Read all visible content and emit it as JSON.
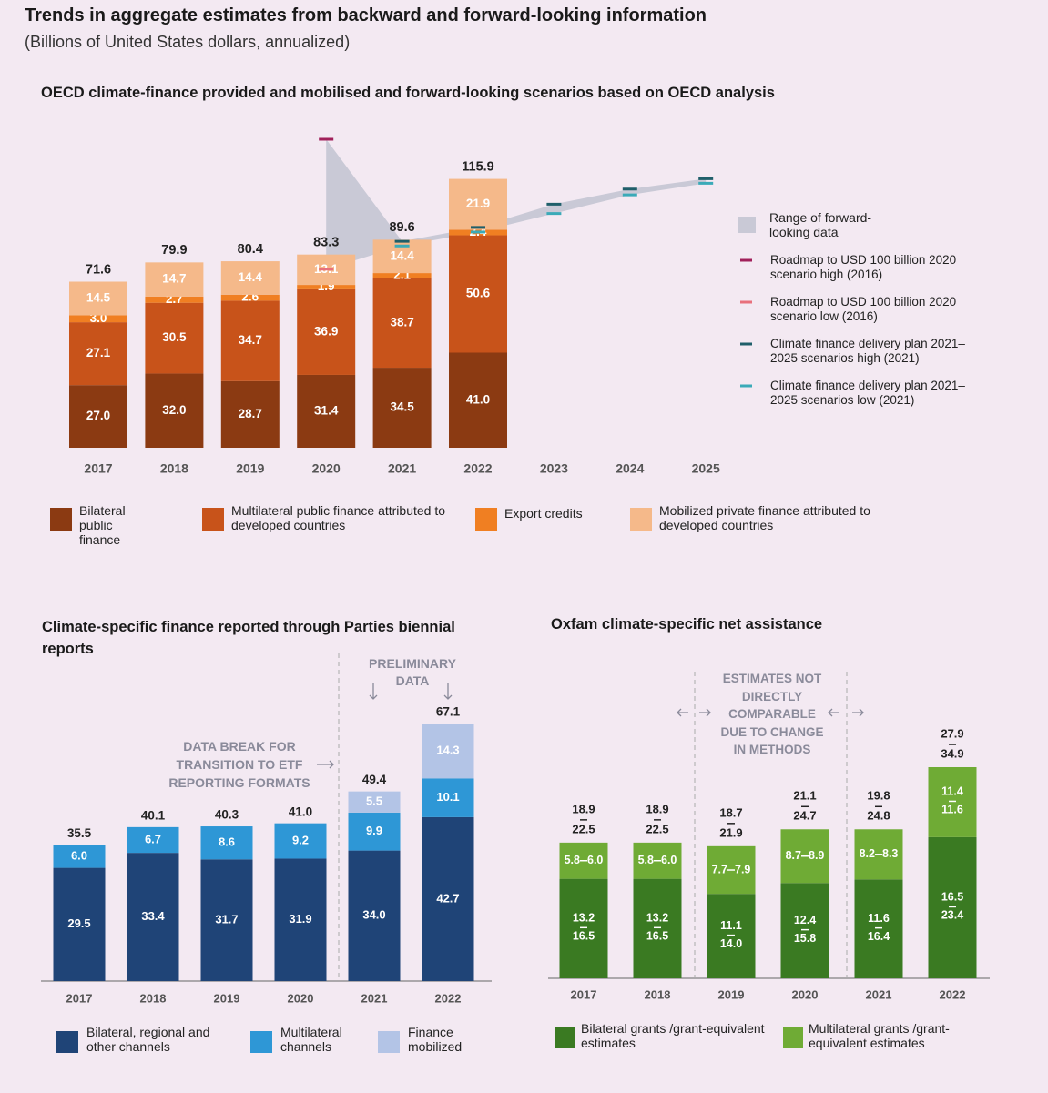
{
  "title": "Trends in aggregate estimates from backward and forward-looking information",
  "subtitle": "(Billions of United States dollars, annualized)",
  "chart_data": [
    {
      "type": "stacked_bar_scenarios",
      "title": "OECD climate-finance provided and mobilised and forward-looking scenarios based on OECD analysis",
      "categories": [
        "2017",
        "2018",
        "2019",
        "2020",
        "2021",
        "2022",
        "2023",
        "2024",
        "2025"
      ],
      "series": [
        {
          "name": "Bilateral public finance",
          "color": "#8b3a12",
          "values": [
            27.0,
            32.0,
            28.7,
            31.4,
            34.5,
            41.0,
            null,
            null,
            null
          ],
          "value_labels": [
            "27.0",
            "32.0",
            "28.7",
            "31.4",
            "34.5",
            "41.0",
            null,
            null,
            null
          ]
        },
        {
          "name": "Multilateral public finance attributed to developed countries",
          "color": "#c8531a",
          "values": [
            27.1,
            30.5,
            34.7,
            36.9,
            38.7,
            50.6,
            null,
            null,
            null
          ],
          "value_labels": [
            "27.1",
            "30.5",
            "34.7",
            "36.9",
            "38.7",
            "50.6",
            null,
            null,
            null
          ]
        },
        {
          "name": "Export credits",
          "color": "#f07f22",
          "values": [
            3.0,
            2.7,
            2.6,
            1.9,
            2.1,
            2.4,
            null,
            null,
            null
          ],
          "value_labels": [
            "3.0",
            "2.7",
            "2.6",
            "1.9",
            "2.1",
            "2.4",
            null,
            null,
            null
          ]
        },
        {
          "name": "Mobilized private finance attributed to developed countries",
          "color": "#f5b98a",
          "values": [
            14.5,
            14.7,
            14.4,
            13.1,
            14.4,
            21.9,
            null,
            null,
            null
          ],
          "value_labels": [
            "14.5",
            "14.7",
            "14.4",
            "13.1",
            "14.4",
            "21.9",
            null,
            null,
            null
          ]
        }
      ],
      "totals": [
        71.6,
        79.9,
        80.4,
        83.3,
        89.6,
        115.9,
        null,
        null,
        null
      ],
      "range": {
        "name": "Range of forward-looking data",
        "color": "#c9c9d6",
        "low": [
          null,
          null,
          null,
          77,
          87,
          93,
          101,
          109,
          114
        ],
        "high": [
          null,
          null,
          null,
          133,
          89,
          95,
          105,
          111.5,
          116
        ]
      },
      "scenarios": [
        {
          "name": "Roadmap to USD 100 billion 2020 scenario high (2016)",
          "color": "#a0205a",
          "values": [
            null,
            null,
            null,
            133,
            null,
            null,
            null,
            null,
            null
          ]
        },
        {
          "name": "Roadmap to USD 100 billion 2020 scenario low (2016)",
          "color": "#e8707c",
          "values": [
            null,
            null,
            null,
            77,
            null,
            null,
            null,
            null,
            null
          ]
        },
        {
          "name": "Climate finance delivery plan 2021–2025 scenarios high (2021)",
          "color": "#1f5f6a",
          "values": [
            null,
            null,
            null,
            null,
            89,
            95,
            105,
            111.5,
            116
          ]
        },
        {
          "name": "Climate finance delivery plan 2021–2025 scenarios low (2021)",
          "color": "#3aaab8",
          "values": [
            null,
            null,
            null,
            null,
            87,
            93,
            101,
            109,
            114
          ]
        }
      ]
    },
    {
      "type": "stacked_bar",
      "title": "Climate-specific finance reported through Parties biennial reports",
      "categories": [
        "2017",
        "2018",
        "2019",
        "2020",
        "2021",
        "2022"
      ],
      "series": [
        {
          "name": "Bilateral, regional and other channels",
          "color": "#1f4477",
          "values": [
            29.5,
            33.4,
            31.7,
            31.9,
            34.0,
            42.7
          ],
          "value_labels": [
            "29.5",
            "33.4",
            "31.7",
            "31.9",
            "34.0",
            "42.7"
          ]
        },
        {
          "name": "Multilateral channels",
          "color": "#2e97d6",
          "values": [
            6.0,
            6.7,
            8.6,
            9.2,
            9.9,
            10.1
          ],
          "value_labels": [
            "6.0",
            "6.7",
            "8.6",
            "9.2",
            "9.9",
            "10.1"
          ]
        },
        {
          "name": "Finance mobilized",
          "color": "#b3c4e6",
          "values": [
            null,
            null,
            null,
            null,
            5.5,
            14.3
          ],
          "value_labels": [
            null,
            null,
            null,
            null,
            "5.5",
            "14.3"
          ]
        }
      ],
      "totals": [
        35.5,
        40.1,
        40.3,
        41.0,
        49.4,
        67.1
      ],
      "total_labels": [
        "35.5",
        "40.1",
        "40.3",
        "41.0",
        "49.4",
        "67.1"
      ],
      "annotations": [
        "DATA BREAK FOR TRANSITION TO ETF REPORTING FORMATS",
        "PRELIMINARY DATA"
      ]
    },
    {
      "type": "range_stacked_bar",
      "title": "Oxfam climate-specific net assistance",
      "categories": [
        "2017",
        "2018",
        "2019",
        "2020",
        "2021",
        "2022"
      ],
      "series": [
        {
          "name": "Bilateral grants /grant-equivalent estimates",
          "color": "#3a7a22",
          "low": [
            13.2,
            13.2,
            11.1,
            12.4,
            11.6,
            16.5
          ],
          "high": [
            16.5,
            16.5,
            14.0,
            15.8,
            16.4,
            23.4
          ],
          "low_labels": [
            "13.2",
            "13.2",
            "11.1",
            "12.4",
            "11.6",
            "16.5"
          ],
          "high_labels": [
            "16.5",
            "16.5",
            "14.0",
            "15.8",
            "16.4",
            "23.4"
          ]
        },
        {
          "name": "Multilateral grants /grant-equivalent estimates",
          "color": "#6fab35",
          "low": [
            5.8,
            5.8,
            7.7,
            8.7,
            8.2,
            11.4
          ],
          "high": [
            6.0,
            6.0,
            7.9,
            8.9,
            8.3,
            11.6
          ],
          "low_labels": [
            "5.8",
            "5.8",
            "7.7",
            "8.7",
            "8.2",
            "11.4"
          ],
          "high_labels": [
            "6.0",
            "6.0",
            "7.9",
            "8.9",
            "8.3",
            "11.6"
          ]
        }
      ],
      "totals": {
        "low": [
          18.9,
          18.9,
          18.7,
          21.1,
          19.8,
          27.9
        ],
        "high": [
          22.5,
          22.5,
          21.9,
          24.7,
          24.8,
          34.9
        ]
      },
      "annotations": [
        "ESTIMATES NOT DIRECTLY COMPARABLE DUE TO CHANGE IN METHODS"
      ]
    }
  ]
}
